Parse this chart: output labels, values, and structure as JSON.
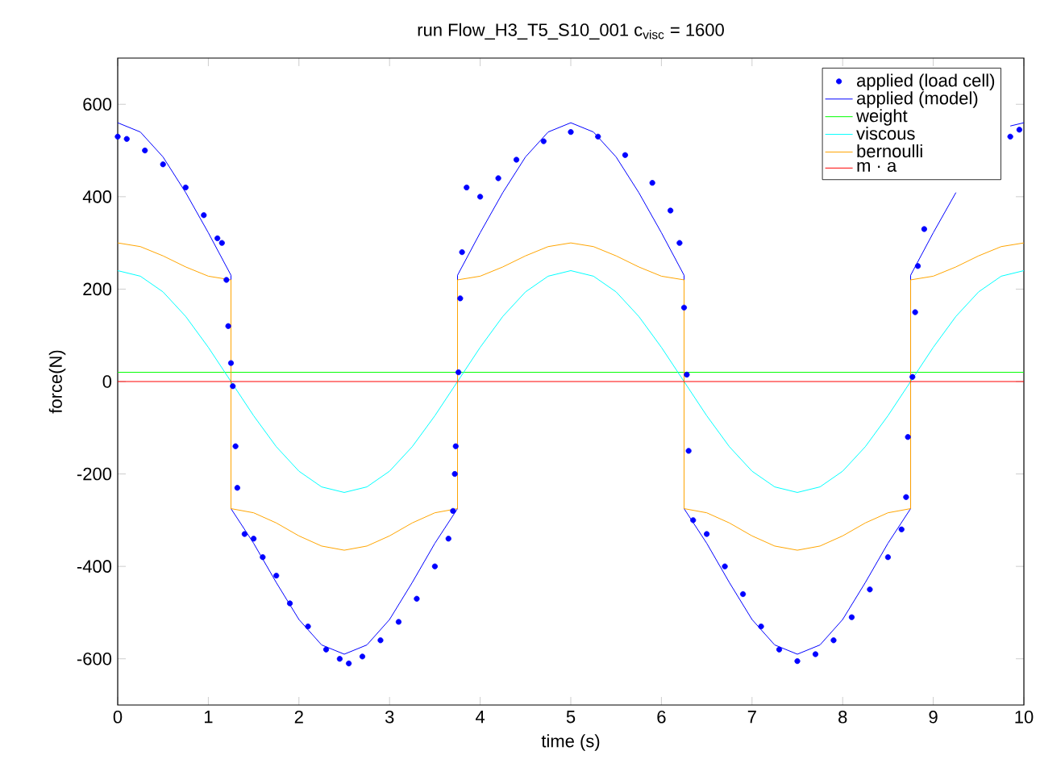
{
  "chart_data": {
    "type": "line",
    "title": "run Flow_H3_T5_S10_001 c$_{visc}$ = 1600",
    "xlabel": "time (s)",
    "ylabel": "force(N)",
    "xlim": [
      0,
      10
    ],
    "ylim": [
      -700,
      700
    ],
    "xticks": [
      0,
      1,
      2,
      3,
      4,
      5,
      6,
      7,
      8,
      9,
      10
    ],
    "yticks": [
      -600,
      -400,
      -200,
      0,
      200,
      400,
      600
    ],
    "legend": "top right",
    "series": [
      {
        "name": "applied (load cell)",
        "type": "scatter",
        "color": "#0000ff",
        "x": [
          0,
          0.1,
          0.3,
          0.5,
          0.75,
          0.95,
          1.1,
          1.15,
          1.2,
          1.22,
          1.25,
          1.27,
          1.3,
          1.32,
          1.4,
          1.5,
          1.6,
          1.75,
          1.9,
          2.1,
          2.3,
          2.45,
          2.55,
          2.7,
          2.9,
          3.1,
          3.3,
          3.5,
          3.65,
          3.7,
          3.72,
          3.73,
          3.76,
          3.78,
          3.8,
          3.85,
          4.0,
          4.2,
          4.4,
          4.7,
          5.0,
          5.3,
          5.6,
          5.9,
          6.1,
          6.2,
          6.25,
          6.28,
          6.3,
          6.35,
          6.5,
          6.7,
          6.9,
          7.1,
          7.3,
          7.5,
          7.7,
          7.9,
          8.1,
          8.3,
          8.5,
          8.65,
          8.7,
          8.72,
          8.77,
          8.8,
          8.83,
          8.9,
          9.85,
          9.95
        ],
        "values": [
          530,
          525,
          500,
          470,
          420,
          360,
          310,
          300,
          220,
          120,
          40,
          -10,
          -140,
          -230,
          -330,
          -340,
          -380,
          -420,
          -480,
          -530,
          -580,
          -600,
          -610,
          -595,
          -560,
          -520,
          -470,
          -400,
          -340,
          -280,
          -200,
          -140,
          20,
          180,
          280,
          420,
          400,
          440,
          480,
          520,
          540,
          530,
          490,
          430,
          370,
          300,
          160,
          15,
          -150,
          -300,
          -330,
          -400,
          -460,
          -530,
          -580,
          -605,
          -590,
          -560,
          -510,
          -450,
          -380,
          -320,
          -250,
          -120,
          10,
          150,
          250,
          330,
          530,
          545
        ]
      },
      {
        "name": "applied (model)",
        "color": "#0000ff",
        "x": [
          0,
          0.25,
          0.5,
          0.75,
          1,
          1.25,
          1.25,
          1.5,
          1.75,
          2,
          2.25,
          2.5,
          2.75,
          3,
          3.25,
          3.5,
          3.75,
          3.75,
          4,
          4.25,
          4.5,
          4.75,
          5,
          5.25,
          5.5,
          5.75,
          6,
          6.25,
          6.25,
          6.5,
          6.75,
          7,
          7.25,
          7.5,
          7.75,
          8,
          8.25,
          8.5,
          8.75,
          8.75,
          9,
          9.25,
          9.5,
          9.85,
          10
        ],
        "values": [
          560,
          540,
          486,
          409,
          322,
          230,
          -275,
          -350,
          -435,
          -515,
          -570,
          -590,
          -570,
          -515,
          -435,
          -350,
          -275,
          230,
          322,
          409,
          486,
          540,
          560,
          540,
          486,
          409,
          322,
          230,
          -275,
          -350,
          -435,
          -515,
          -570,
          -590,
          -570,
          -515,
          -435,
          -350,
          -275,
          230,
          322,
          409,
          null,
          553,
          560
        ],
        "type": "line"
      },
      {
        "name": "weight",
        "color": "#00ff00",
        "x": [
          0,
          10
        ],
        "values": [
          20,
          20
        ]
      },
      {
        "name": "viscous",
        "color": "#00ffff",
        "x": [
          0,
          0.25,
          0.5,
          0.75,
          1,
          1.25,
          1.5,
          1.75,
          2,
          2.25,
          2.5,
          2.75,
          3,
          3.25,
          3.5,
          3.75,
          4,
          4.25,
          4.5,
          4.75,
          5,
          5.25,
          5.5,
          5.75,
          6,
          6.25,
          6.5,
          6.75,
          7,
          7.25,
          7.5,
          7.75,
          8,
          8.25,
          8.5,
          8.75,
          9,
          9.25,
          9.5,
          9.75,
          10
        ],
        "values": [
          240,
          228,
          194,
          141,
          74,
          0,
          -74,
          -141,
          -194,
          -228,
          -240,
          -228,
          -194,
          -141,
          -74,
          0,
          74,
          141,
          194,
          228,
          240,
          228,
          194,
          141,
          74,
          0,
          -74,
          -141,
          -194,
          -228,
          -240,
          -228,
          -194,
          -141,
          -74,
          0,
          74,
          141,
          194,
          228,
          240
        ]
      },
      {
        "name": "bernoulli",
        "color": "#ffa500",
        "x": [
          0,
          0.25,
          0.5,
          0.75,
          1,
          1.25,
          1.25,
          1.5,
          1.75,
          2,
          2.25,
          2.5,
          2.75,
          3,
          3.25,
          3.5,
          3.75,
          3.75,
          4,
          4.25,
          4.5,
          4.75,
          5,
          5.25,
          5.5,
          5.75,
          6,
          6.25,
          6.25,
          6.5,
          6.75,
          7,
          7.25,
          7.5,
          7.75,
          8,
          8.25,
          8.5,
          8.75,
          8.75,
          9,
          9.25,
          9.5,
          9.75,
          10
        ],
        "values": [
          300,
          292,
          272,
          248,
          228,
          220,
          -275,
          -284,
          -306,
          -334,
          -356,
          -365,
          -356,
          -334,
          -306,
          -284,
          -275,
          220,
          228,
          248,
          272,
          292,
          300,
          292,
          272,
          248,
          228,
          220,
          -275,
          -284,
          -306,
          -334,
          -356,
          -365,
          -356,
          -334,
          -306,
          -284,
          -275,
          220,
          228,
          248,
          272,
          292,
          300
        ]
      },
      {
        "name": "m · a",
        "color": "#ff0000",
        "x": [
          0,
          10
        ],
        "values": [
          0,
          0
        ]
      }
    ]
  }
}
